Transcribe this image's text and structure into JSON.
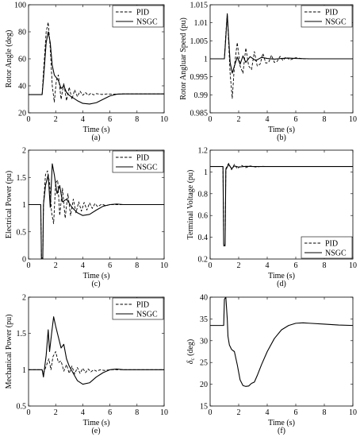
{
  "chart_data": [
    {
      "type": "line",
      "panel_label": "(a)",
      "xlabel": "Time (s)",
      "ylabel": "Rotor Angle (deg)",
      "xlim": [
        0,
        10
      ],
      "ylim": [
        20,
        100
      ],
      "xticks": [
        "0",
        "2",
        "4",
        "6",
        "8",
        "10"
      ],
      "yticks": [
        "20",
        "40",
        "60",
        "80",
        "100"
      ],
      "legend": "top-right",
      "series": [
        {
          "name": "PID",
          "style": "dashed",
          "x": [
            0,
            1.0,
            1.1,
            1.3,
            1.45,
            1.6,
            1.75,
            1.9,
            2.05,
            2.2,
            2.4,
            2.6,
            2.8,
            3.0,
            3.2,
            3.4,
            3.6,
            3.8,
            4.0,
            4.2,
            4.4,
            4.6,
            4.8,
            5.0,
            5.4,
            5.8,
            6.2,
            7.0,
            8.0,
            10.0
          ],
          "y": [
            33.5,
            33.5,
            50,
            80,
            87,
            68,
            40,
            28,
            44,
            48,
            30,
            42,
            29,
            39,
            30,
            37,
            32,
            36,
            33,
            35,
            33,
            34.5,
            33.3,
            34.2,
            33.6,
            34,
            33.8,
            34,
            34,
            34
          ]
        },
        {
          "name": "NSGC",
          "style": "solid",
          "x": [
            0,
            1.0,
            1.1,
            1.3,
            1.45,
            1.6,
            1.75,
            1.9,
            2.05,
            2.2,
            2.4,
            2.6,
            2.8,
            3.0,
            3.3,
            3.6,
            4.0,
            4.5,
            5.0,
            5.5,
            6.0,
            6.5,
            7.0,
            8.0,
            10.0
          ],
          "y": [
            33.5,
            33.5,
            45,
            72,
            80,
            72,
            55,
            48,
            46,
            44,
            38,
            40,
            35,
            33,
            31,
            29,
            27,
            26.5,
            27.5,
            30,
            32.5,
            33.8,
            34,
            34,
            34
          ]
        }
      ]
    },
    {
      "type": "line",
      "panel_label": "(b)",
      "xlabel": "Time (s)",
      "ylabel": "Rotor Angluar Speed (pu)",
      "xlim": [
        0,
        10
      ],
      "ylim": [
        0.985,
        1.015
      ],
      "xticks": [
        "0",
        "2",
        "4",
        "6",
        "8",
        "10"
      ],
      "yticks": [
        "0.985",
        "0.99",
        "0.995",
        "1",
        "1.005",
        "1.01",
        "1.015"
      ],
      "legend": "top-right",
      "series": [
        {
          "name": "PID",
          "style": "dashed",
          "x": [
            0,
            1.0,
            1.1,
            1.2,
            1.4,
            1.55,
            1.7,
            1.9,
            2.1,
            2.3,
            2.5,
            2.7,
            2.9,
            3.1,
            3.3,
            3.5,
            3.7,
            3.9,
            4.1,
            4.3,
            4.5,
            4.7,
            4.9,
            5.1,
            5.3,
            5.6,
            6.0,
            6.5,
            7.0,
            8.0,
            10.0
          ],
          "y": [
            1.0,
            1.0,
            1.007,
            1.0125,
            0.996,
            0.989,
            0.998,
            1.0045,
            0.998,
            0.996,
            1.003,
            0.998,
            0.997,
            1.002,
            0.998,
            0.9985,
            1.0015,
            0.9988,
            0.999,
            1.001,
            0.999,
            0.9993,
            1.0007,
            0.9995,
            1.0005,
            0.9997,
            1.0003,
            1.0,
            1.0,
            1.0,
            1.0
          ]
        },
        {
          "name": "NSGC",
          "style": "solid",
          "x": [
            0,
            1.0,
            1.1,
            1.2,
            1.4,
            1.55,
            1.7,
            1.9,
            2.1,
            2.3,
            2.5,
            2.8,
            3.2,
            3.6,
            4.0,
            4.5,
            5.0,
            5.5,
            6.0,
            7.0,
            8.0,
            10.0
          ],
          "y": [
            1.0,
            1.0,
            1.006,
            1.0125,
            0.999,
            0.996,
            0.998,
            1.0005,
            0.9985,
            1.0008,
            0.999,
            1.0006,
            0.9995,
            1.0004,
            1.0001,
            0.9999,
            1.0001,
            1.0002,
            1.0001,
            1.0,
            1.0,
            1.0
          ]
        }
      ]
    },
    {
      "type": "line",
      "panel_label": "(c)",
      "xlabel": "Time (s)",
      "ylabel": "Electrical Power (pu)",
      "xlim": [
        0,
        10
      ],
      "ylim": [
        0,
        2
      ],
      "xticks": [
        "0",
        "2",
        "4",
        "6",
        "8",
        "10"
      ],
      "yticks": [
        "0",
        "0.5",
        "1",
        "1.5",
        "2"
      ],
      "legend": "top-right",
      "series": [
        {
          "name": "PID",
          "style": "dashed",
          "x": [
            0,
            0.9,
            0.95,
            1.05,
            1.1,
            1.25,
            1.4,
            1.55,
            1.7,
            1.85,
            2.0,
            2.15,
            2.3,
            2.5,
            2.7,
            2.9,
            3.1,
            3.3,
            3.5,
            3.7,
            3.9,
            4.1,
            4.3,
            4.5,
            4.7,
            4.9,
            5.1,
            5.4,
            5.7,
            6.0,
            6.5,
            7.0,
            8.0,
            10.0
          ],
          "y": [
            1.0,
            1.0,
            0.02,
            0.02,
            1.0,
            1.55,
            1.62,
            1.4,
            0.85,
            0.65,
            1.4,
            1.45,
            0.8,
            1.3,
            0.75,
            1.2,
            0.8,
            1.1,
            0.85,
            1.05,
            0.88,
            1.04,
            0.9,
            1.03,
            0.93,
            1.02,
            0.96,
            1.01,
            0.98,
            1.0,
            1.0,
            1.0,
            1.0,
            1.0
          ]
        },
        {
          "name": "NSGC",
          "style": "solid",
          "x": [
            0,
            0.9,
            0.95,
            1.05,
            1.1,
            1.25,
            1.45,
            1.6,
            1.75,
            1.9,
            2.1,
            2.3,
            2.5,
            2.8,
            3.2,
            3.6,
            4.0,
            4.5,
            5.0,
            5.5,
            6.0,
            6.5,
            7.0,
            8.0,
            10.0
          ],
          "y": [
            1.0,
            1.0,
            0.0,
            0.0,
            1.0,
            1.35,
            1.55,
            0.95,
            1.75,
            1.55,
            1.2,
            1.35,
            1.05,
            1.1,
            0.95,
            0.85,
            0.8,
            0.82,
            0.9,
            0.97,
            1.0,
            1.01,
            1.0,
            1.0,
            1.0
          ]
        }
      ]
    },
    {
      "type": "line",
      "panel_label": "(d)",
      "xlabel": "Time (s)",
      "ylabel": "Terminal Voltage (pu)",
      "xlim": [
        0,
        10
      ],
      "ylim": [
        0.2,
        1.2
      ],
      "xticks": [
        "0",
        "2",
        "4",
        "6",
        "8",
        "10"
      ],
      "yticks": [
        "0.2",
        "0.4",
        "0.6",
        "0.8",
        "1",
        "1.2"
      ],
      "legend": "bottom-right",
      "series": [
        {
          "name": "PID",
          "style": "dashed",
          "x": [
            0,
            0.9,
            0.95,
            1.05,
            1.1,
            1.3,
            1.5,
            1.7,
            1.9,
            2.2,
            2.5,
            2.8,
            3.2,
            3.6,
            4.0,
            5.0,
            10.0
          ],
          "y": [
            1.05,
            1.05,
            0.32,
            0.32,
            1.03,
            1.08,
            1.02,
            1.07,
            1.03,
            1.06,
            1.04,
            1.055,
            1.045,
            1.052,
            1.05,
            1.05,
            1.05
          ]
        },
        {
          "name": "NSGC",
          "style": "solid",
          "x": [
            0,
            0.9,
            0.95,
            1.05,
            1.1,
            1.3,
            1.5,
            1.7,
            2.0,
            2.5,
            3.0,
            4.0,
            10.0
          ],
          "y": [
            1.05,
            1.05,
            0.33,
            0.33,
            1.02,
            1.07,
            1.03,
            1.055,
            1.045,
            1.052,
            1.05,
            1.05,
            1.05
          ]
        }
      ]
    },
    {
      "type": "line",
      "panel_label": "(e)",
      "xlabel": "Time (s)",
      "ylabel": "Mechanical Power (pu)",
      "xlim": [
        0,
        10
      ],
      "ylim": [
        0.5,
        2
      ],
      "xticks": [
        "0",
        "2",
        "4",
        "6",
        "8",
        "10"
      ],
      "yticks": [
        "0.5",
        "1",
        "1.5",
        "2"
      ],
      "legend": "top-right",
      "series": [
        {
          "name": "PID",
          "style": "dashed",
          "x": [
            0,
            1.0,
            1.1,
            1.3,
            1.5,
            1.65,
            1.8,
            2.0,
            2.2,
            2.4,
            2.6,
            2.8,
            3.0,
            3.2,
            3.4,
            3.6,
            3.8,
            4.0,
            4.2,
            4.4,
            4.6,
            4.8,
            5.0,
            5.3,
            5.6,
            6.0,
            7.0,
            10.0
          ],
          "y": [
            1.0,
            1.0,
            0.95,
            1.05,
            1.15,
            1.0,
            1.18,
            1.25,
            1.1,
            1.12,
            0.98,
            1.07,
            0.95,
            1.05,
            0.94,
            1.03,
            0.95,
            1.02,
            0.96,
            1.01,
            0.97,
            1.0,
            0.98,
            1.0,
            0.99,
            1.0,
            1.0,
            1.0
          ]
        },
        {
          "name": "NSGC",
          "style": "solid",
          "x": [
            0,
            1.0,
            1.1,
            1.3,
            1.45,
            1.55,
            1.7,
            1.85,
            2.0,
            2.2,
            2.4,
            2.6,
            2.8,
            3.0,
            3.3,
            3.6,
            4.0,
            4.5,
            5.0,
            5.5,
            6.0,
            6.5,
            7.0,
            8.0,
            10.0
          ],
          "y": [
            1.0,
            1.0,
            0.9,
            1.2,
            1.55,
            1.25,
            1.5,
            1.73,
            1.6,
            1.45,
            1.3,
            1.35,
            1.15,
            1.05,
            0.95,
            0.85,
            0.8,
            0.82,
            0.9,
            0.96,
            1.0,
            1.01,
            1.0,
            1.0,
            1.0
          ]
        }
      ]
    },
    {
      "type": "line",
      "panel_label": "(f)",
      "xlabel": "Time (s)",
      "ylabel": "δ (deg)",
      "ylabel_symbol": "δ",
      "ylabel_subscript": "c",
      "ylabel_rest": "(deg)",
      "xlim": [
        0,
        10
      ],
      "ylim": [
        15,
        40
      ],
      "xticks": [
        "0",
        "2",
        "4",
        "6",
        "8",
        "10"
      ],
      "yticks": [
        "15",
        "20",
        "25",
        "30",
        "35",
        "40"
      ],
      "legend": "none",
      "series": [
        {
          "style": "solid",
          "x": [
            0,
            0.95,
            1.0,
            1.1,
            1.2,
            1.25,
            1.35,
            1.5,
            1.7,
            1.9,
            2.1,
            2.3,
            2.5,
            2.7,
            2.9,
            3.1,
            3.3,
            3.6,
            4.0,
            4.5,
            5.0,
            5.5,
            6.0,
            6.5,
            7.0,
            8.0,
            9.0,
            10.0
          ],
          "y": [
            33.5,
            33.5,
            39.5,
            40,
            35,
            31,
            29,
            28,
            27.5,
            24.5,
            21,
            19.7,
            19.5,
            19.6,
            20.2,
            20.5,
            22,
            24.5,
            27.5,
            30.5,
            32.5,
            33.5,
            34,
            34.1,
            34,
            33.8,
            33.6,
            33.5
          ]
        }
      ]
    }
  ]
}
